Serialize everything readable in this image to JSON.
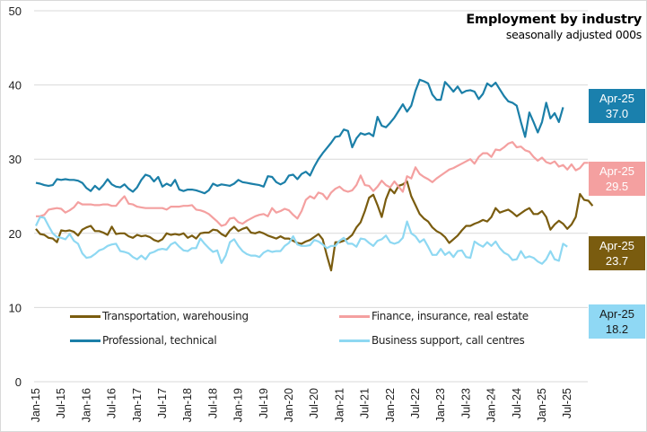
{
  "chart_data": {
    "type": "line",
    "title": "Employment by industry",
    "subtitle": "seasonally adjusted 000s",
    "xlabel": "",
    "ylabel": "",
    "ylim": [
      0,
      50
    ],
    "yticks": [
      0,
      10,
      20,
      30,
      40,
      50
    ],
    "grid": true,
    "legend_position": "bottom-inside",
    "start_month": "Jan-15",
    "end_month": "Apr-25",
    "xticks": [
      "Jan-15",
      "Jul-15",
      "Jan-16",
      "Jul-16",
      "Jan-17",
      "Jul-17",
      "Jan-18",
      "Jul-18",
      "Jan-19",
      "Jul-19",
      "Jan-20",
      "Jul-20",
      "Jan-21",
      "Jul-21",
      "Jan-22",
      "Jul-22",
      "Jan-23",
      "Jul-23",
      "Jan-24",
      "Jul-24",
      "Jan-25",
      "Jul-25"
    ],
    "series": [
      {
        "name": "Transportation, warehousing",
        "color": "#7a5c0f",
        "end_label": {
          "period": "Apr-25",
          "value": "23.7",
          "bg": "#7a5c0f",
          "fg": "#ffffff"
        },
        "values": [
          20.6,
          19.9,
          19.8,
          19.4,
          19.3,
          18.8,
          20.4,
          20.3,
          20.4,
          20.2,
          19.7,
          20.5,
          20.8,
          21.0,
          20.3,
          20.3,
          20.1,
          19.8,
          20.9,
          19.9,
          20.0,
          20.0,
          19.6,
          19.4,
          19.8,
          19.6,
          19.7,
          19.5,
          19.1,
          18.9,
          19.2,
          20.0,
          19.8,
          19.9,
          19.8,
          20.0,
          19.4,
          19.7,
          19.3,
          20.0,
          20.1,
          20.1,
          20.5,
          20.4,
          19.9,
          19.6,
          20.4,
          20.9,
          20.3,
          20.6,
          20.8,
          20.1,
          20.0,
          20.2,
          20.0,
          19.7,
          19.5,
          19.3,
          19.6,
          19.3,
          19.3,
          19.0,
          18.7,
          18.6,
          18.9,
          19.1,
          19.5,
          19.9,
          19.2,
          17.0,
          15.0,
          18.8,
          18.8,
          19.0,
          19.3,
          19.8,
          20.8,
          21.5,
          23.0,
          24.8,
          25.2,
          23.8,
          22.2,
          24.6,
          26.0,
          25.4,
          26.4,
          26.6,
          27.0,
          25.0,
          23.8,
          22.6,
          22.0,
          21.6,
          20.8,
          20.3,
          20.0,
          19.5,
          18.7,
          19.2,
          19.7,
          20.4,
          21.0,
          21.0,
          21.3,
          21.5,
          21.8,
          21.6,
          22.2,
          23.4,
          22.8,
          23.0,
          23.2,
          22.8,
          22.3,
          22.7,
          23.1,
          23.4,
          22.6,
          22.6,
          23.0,
          22.2,
          20.5,
          21.2,
          21.7,
          21.3,
          20.6,
          21.2,
          22.2,
          25.3,
          24.5,
          24.4,
          23.7
        ]
      },
      {
        "name": "Finance, insurance, real estate",
        "color": "#f4a0a0",
        "end_label": {
          "period": "Apr-25",
          "value": "29.5",
          "bg": "#f4a0a0",
          "fg": "#ffffff"
        },
        "values": [
          22.3,
          22.3,
          22.5,
          23.2,
          23.3,
          23.4,
          23.3,
          22.8,
          23.1,
          23.5,
          24.2,
          23.9,
          23.9,
          23.9,
          23.8,
          23.8,
          23.9,
          23.9,
          23.7,
          23.7,
          24.4,
          25.0,
          24.0,
          23.9,
          23.6,
          23.5,
          23.4,
          23.4,
          23.4,
          23.4,
          23.4,
          23.2,
          23.6,
          23.6,
          23.6,
          23.7,
          23.7,
          23.8,
          23.2,
          23.1,
          22.9,
          22.6,
          22.1,
          21.6,
          21.0,
          21.2,
          22.0,
          22.1,
          21.5,
          21.3,
          21.7,
          22.0,
          22.3,
          22.5,
          22.6,
          22.3,
          23.4,
          22.8,
          23.0,
          23.3,
          23.1,
          22.5,
          22.0,
          23.0,
          24.5,
          25.0,
          24.7,
          25.5,
          25.3,
          24.6,
          25.5,
          26.0,
          26.3,
          25.8,
          25.6,
          25.8,
          26.5,
          27.8,
          26.5,
          26.4,
          25.7,
          26.3,
          27.1,
          26.5,
          26.2,
          27.0,
          26.3,
          25.6,
          27.7,
          27.4,
          28.9,
          28.0,
          27.6,
          27.3,
          26.9,
          27.4,
          27.8,
          28.2,
          28.6,
          28.8,
          29.1,
          29.4,
          29.7,
          30.0,
          29.4,
          30.3,
          30.8,
          30.8,
          30.3,
          31.3,
          31.2,
          31.6,
          32.1,
          32.3,
          31.6,
          31.7,
          31.2,
          31.0,
          30.3,
          29.8,
          30.2,
          29.6,
          29.4,
          29.7,
          29.0,
          29.2,
          28.6,
          29.3,
          28.5,
          28.8,
          29.5,
          29.5
        ]
      },
      {
        "name": "Professional, technical",
        "color": "#1b7fa8",
        "end_label": {
          "period": "Apr-25",
          "value": "37.0",
          "bg": "#1a80ad",
          "fg": "#ffffff"
        },
        "values": [
          26.8,
          26.7,
          26.5,
          26.4,
          26.5,
          27.3,
          27.2,
          27.3,
          27.2,
          27.2,
          27.1,
          26.8,
          26.1,
          25.7,
          26.4,
          25.9,
          26.5,
          27.3,
          26.6,
          26.3,
          26.2,
          26.6,
          26.0,
          25.6,
          26.2,
          27.2,
          27.9,
          27.7,
          27.0,
          27.6,
          26.3,
          26.7,
          26.4,
          27.2,
          25.9,
          25.7,
          25.9,
          25.9,
          25.8,
          25.6,
          25.4,
          25.8,
          26.7,
          26.4,
          26.6,
          26.5,
          26.4,
          26.7,
          27.2,
          26.9,
          26.8,
          26.7,
          26.6,
          26.5,
          26.3,
          27.7,
          27.6,
          26.9,
          26.6,
          26.9,
          27.8,
          27.9,
          27.3,
          28.0,
          28.3,
          27.8,
          29.0,
          30.0,
          30.8,
          31.5,
          32.2,
          33.0,
          33.1,
          34.0,
          33.8,
          31.6,
          32.8,
          33.5,
          33.3,
          33.5,
          33.1,
          35.7,
          34.5,
          34.3,
          34.9,
          35.6,
          36.5,
          37.4,
          36.4,
          37.2,
          39.2,
          40.7,
          40.5,
          40.2,
          38.7,
          38.0,
          38.0,
          40.4,
          39.8,
          39.1,
          39.8,
          38.9,
          39.2,
          39.3,
          39.1,
          38.1,
          38.8,
          40.2,
          39.8,
          40.3,
          39.4,
          38.5,
          37.8,
          37.6,
          37.2,
          35.0,
          33.0,
          36.3,
          35.0,
          33.6,
          35.0,
          37.6,
          35.5,
          36.2,
          35.0,
          37.0
        ]
      },
      {
        "name": "Business support, call centres",
        "color": "#8ed8f2",
        "end_label": {
          "period": "Apr-25",
          "value": "18.2",
          "bg": "#8fd8f4",
          "fg": "#1a1a1a"
        },
        "values": [
          21.0,
          22.2,
          22.1,
          21.0,
          20.0,
          19.5,
          19.4,
          19.2,
          19.9,
          19.0,
          18.6,
          17.3,
          16.7,
          16.8,
          17.2,
          17.7,
          17.9,
          18.3,
          18.5,
          18.6,
          17.6,
          17.5,
          17.3,
          16.8,
          16.5,
          17.0,
          16.5,
          17.3,
          17.5,
          17.8,
          17.9,
          17.8,
          18.5,
          18.8,
          18.2,
          17.7,
          17.6,
          18.0,
          18.0,
          19.3,
          18.6,
          18.0,
          17.5,
          17.7,
          16.0,
          17.0,
          18.8,
          19.2,
          18.3,
          17.6,
          17.2,
          17.0,
          17.0,
          16.8,
          17.4,
          17.7,
          17.5,
          17.6,
          17.6,
          18.3,
          18.7,
          19.6,
          18.5,
          18.3,
          18.3,
          18.4,
          19.1,
          18.9,
          18.5,
          18.0,
          18.3,
          18.3,
          19.0,
          19.4,
          18.6,
          18.6,
          18.2,
          19.3,
          19.2,
          18.7,
          18.3,
          19.0,
          19.2,
          19.7,
          18.8,
          18.6,
          18.8,
          19.4,
          21.6,
          20.0,
          19.6,
          18.8,
          19.2,
          18.2,
          17.1,
          17.1,
          17.9,
          17.1,
          17.5,
          16.8,
          17.6,
          17.7,
          16.8,
          16.7,
          18.9,
          18.5,
          18.2,
          18.8,
          18.3,
          18.9,
          18.0,
          17.4,
          17.1,
          16.4,
          16.5,
          17.6,
          16.7,
          16.9,
          16.7,
          16.2,
          15.9,
          16.5,
          17.6,
          16.5,
          16.3,
          18.6,
          18.2
        ]
      }
    ]
  }
}
